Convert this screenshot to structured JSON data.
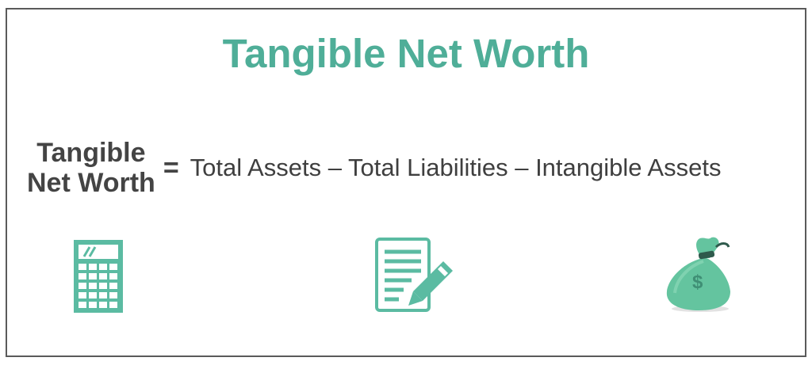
{
  "title": "Tangible Net Worth",
  "formula": {
    "lhs_line1": "Tangible",
    "lhs_line2": "Net Worth",
    "equals": "=",
    "rhs": "Total Assets – Total Liabilities – Intangible Assets"
  },
  "icons": [
    "calculator-icon",
    "document-pencil-icon",
    "money-bag-icon"
  ],
  "colors": {
    "accent": "#4fae98",
    "text": "#3f3f3f",
    "border": "#5a5a5a"
  }
}
